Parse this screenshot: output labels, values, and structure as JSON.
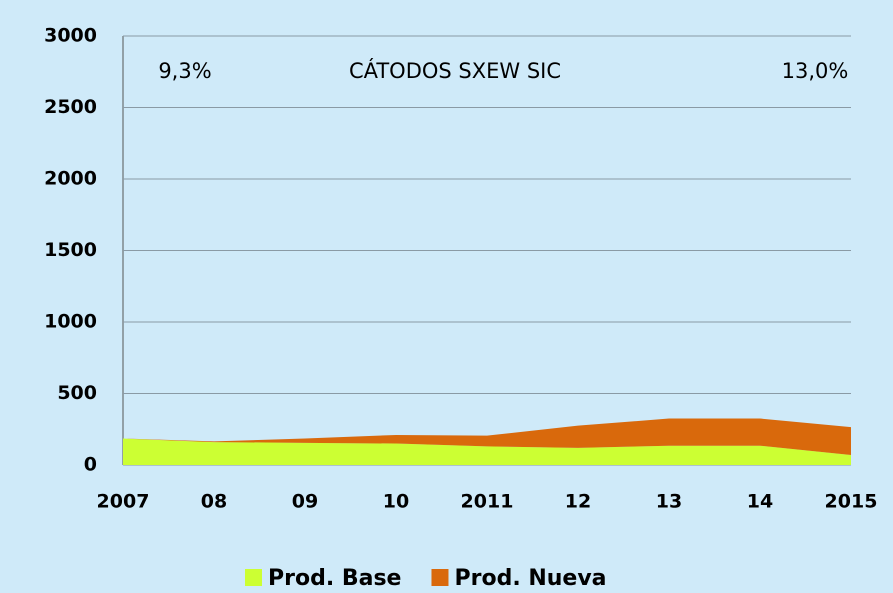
{
  "chart_data": {
    "type": "stacked_area",
    "title": "CÁTODOS SXEW SIC",
    "annotations": [
      "9,3%",
      "13,0%"
    ],
    "categories": [
      "2007",
      "08",
      "09",
      "10",
      "2011",
      "12",
      "13",
      "14",
      "2015"
    ],
    "series": [
      {
        "name": "Prod. Base",
        "color": "#ccff33",
        "values": [
          185,
          160,
          155,
          150,
          130,
          120,
          135,
          135,
          70
        ]
      },
      {
        "name": "Prod. Nueva",
        "color": "#d9690c",
        "values": [
          0,
          5,
          30,
          60,
          75,
          155,
          190,
          190,
          195
        ]
      }
    ],
    "ylim": [
      0,
      3000
    ],
    "yticks": [
      0,
      500,
      1000,
      1500,
      2000,
      2500,
      3000
    ],
    "grid": true,
    "legend": "bottom"
  }
}
